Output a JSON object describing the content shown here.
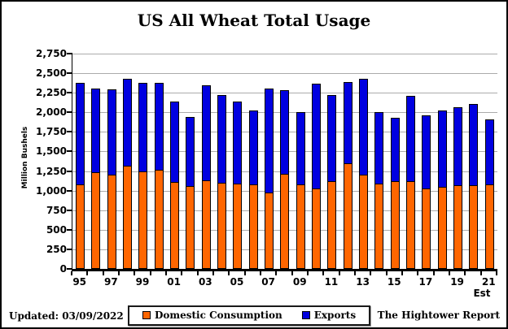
{
  "title": "US All Wheat Total Usage",
  "y_axis": {
    "title": "Million Bushels",
    "tick_labels": [
      "0",
      "250",
      "500",
      "750",
      "1,000",
      "1,250",
      "1,500",
      "1,750",
      "2,000",
      "2,250",
      "2,500",
      "2,750"
    ]
  },
  "x_axis": {
    "tick_labels": [
      "95",
      "97",
      "99",
      "01",
      "03",
      "05",
      "07",
      "09",
      "11",
      "13",
      "15",
      "17",
      "19",
      "21"
    ],
    "est_label": "Est"
  },
  "legend": {
    "items": [
      {
        "label": "Domestic Consumption",
        "color": "#FF6600"
      },
      {
        "label": "Exports",
        "color": "#0000E0"
      }
    ]
  },
  "footer": {
    "updated": "Updated: 03/09/2022",
    "source": "The Hightower Report"
  },
  "colors": {
    "domestic": "#FF6600",
    "exports": "#0000E0",
    "gridline": "#ABABAB",
    "axis": "#000000"
  },
  "chart_data": {
    "type": "bar",
    "stacked": true,
    "title": "US All Wheat Total Usage",
    "ylabel": "Million Bushels",
    "ylim": [
      0,
      2750
    ],
    "ytick_step": 250,
    "grid": true,
    "legend_position": "bottom",
    "x_note": "21 is marked Est (estimate)",
    "categories": [
      "95",
      "96",
      "97",
      "98",
      "99",
      "00",
      "01",
      "02",
      "03",
      "04",
      "05",
      "06",
      "07",
      "08",
      "09",
      "10",
      "11",
      "12",
      "13",
      "14",
      "15",
      "16",
      "17",
      "18",
      "19",
      "20",
      "21"
    ],
    "series": [
      {
        "name": "Domestic Consumption",
        "color": "#FF6600",
        "values": [
          1075,
          1240,
          1200,
          1320,
          1250,
          1270,
          1110,
          1060,
          1130,
          1100,
          1085,
          1075,
          980,
          1215,
          1075,
          1025,
          1120,
          1345,
          1200,
          1085,
          1125,
          1125,
          1025,
          1050,
          1065,
          1065,
          1075
        ]
      },
      {
        "name": "Exports",
        "color": "#0000E0",
        "values": [
          1300,
          1060,
          1095,
          1105,
          1125,
          1110,
          1030,
          880,
          1220,
          1120,
          1050,
          945,
          1320,
          1070,
          925,
          1345,
          1100,
          1045,
          1230,
          920,
          805,
          1085,
          935,
          975,
          1005,
          1040,
          830
        ]
      }
    ]
  }
}
